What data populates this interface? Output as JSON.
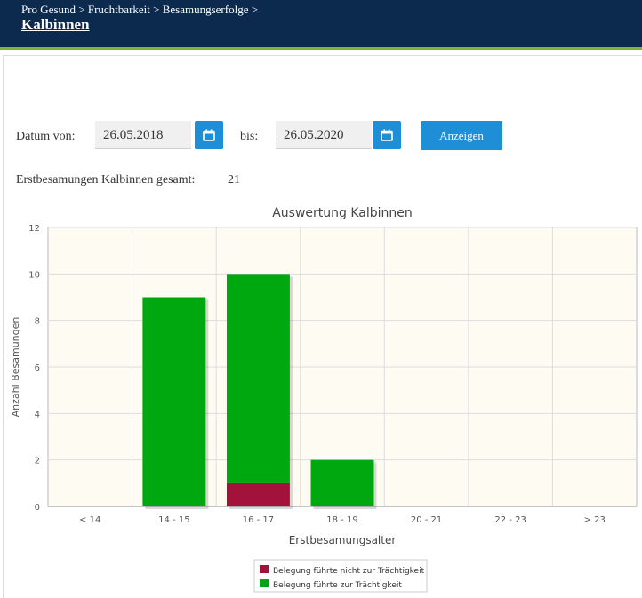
{
  "header": {
    "breadcrumb": "Pro Gesund > Fruchtbarkeit > Besamungserfolge >",
    "title": "Kalbinnen"
  },
  "filter": {
    "from_label": "Datum von:",
    "from_value": "26.05.2018",
    "to_label": "bis:",
    "to_value": "26.05.2020",
    "show_button": "Anzeigen",
    "calendar_icon": "calendar-icon"
  },
  "summary": {
    "label": "Erstbesamungen Kalbinnen gesamt:",
    "value": "21"
  },
  "colors": {
    "header_bg": "#0c2a4e",
    "accent_line": "#7bb43a",
    "button": "#1e8fd6",
    "plot_bg": "#fefcf2"
  },
  "chart_data": {
    "type": "bar",
    "stacked": true,
    "title": "Auswertung Kalbinnen",
    "xlabel": "Erstbesamungsalter",
    "ylabel": "Anzahl Besamungen",
    "categories": [
      "< 14",
      "14 - 15",
      "16 - 17",
      "18 - 19",
      "20 - 21",
      "22 - 23",
      "> 23"
    ],
    "ylim": [
      0,
      12
    ],
    "yticks": [
      0,
      2,
      4,
      6,
      8,
      10,
      12
    ],
    "grid": true,
    "legend_position": "bottom",
    "series": [
      {
        "name": "Belegung führte nicht zur Trächtigkeit",
        "color": "#a3123a",
        "values": [
          0,
          0,
          1,
          0,
          0,
          0,
          0
        ]
      },
      {
        "name": "Belegung führte zur Trächtigkeit",
        "color": "#00a80f",
        "values": [
          0,
          9,
          9,
          2,
          0,
          0,
          0
        ]
      }
    ]
  }
}
